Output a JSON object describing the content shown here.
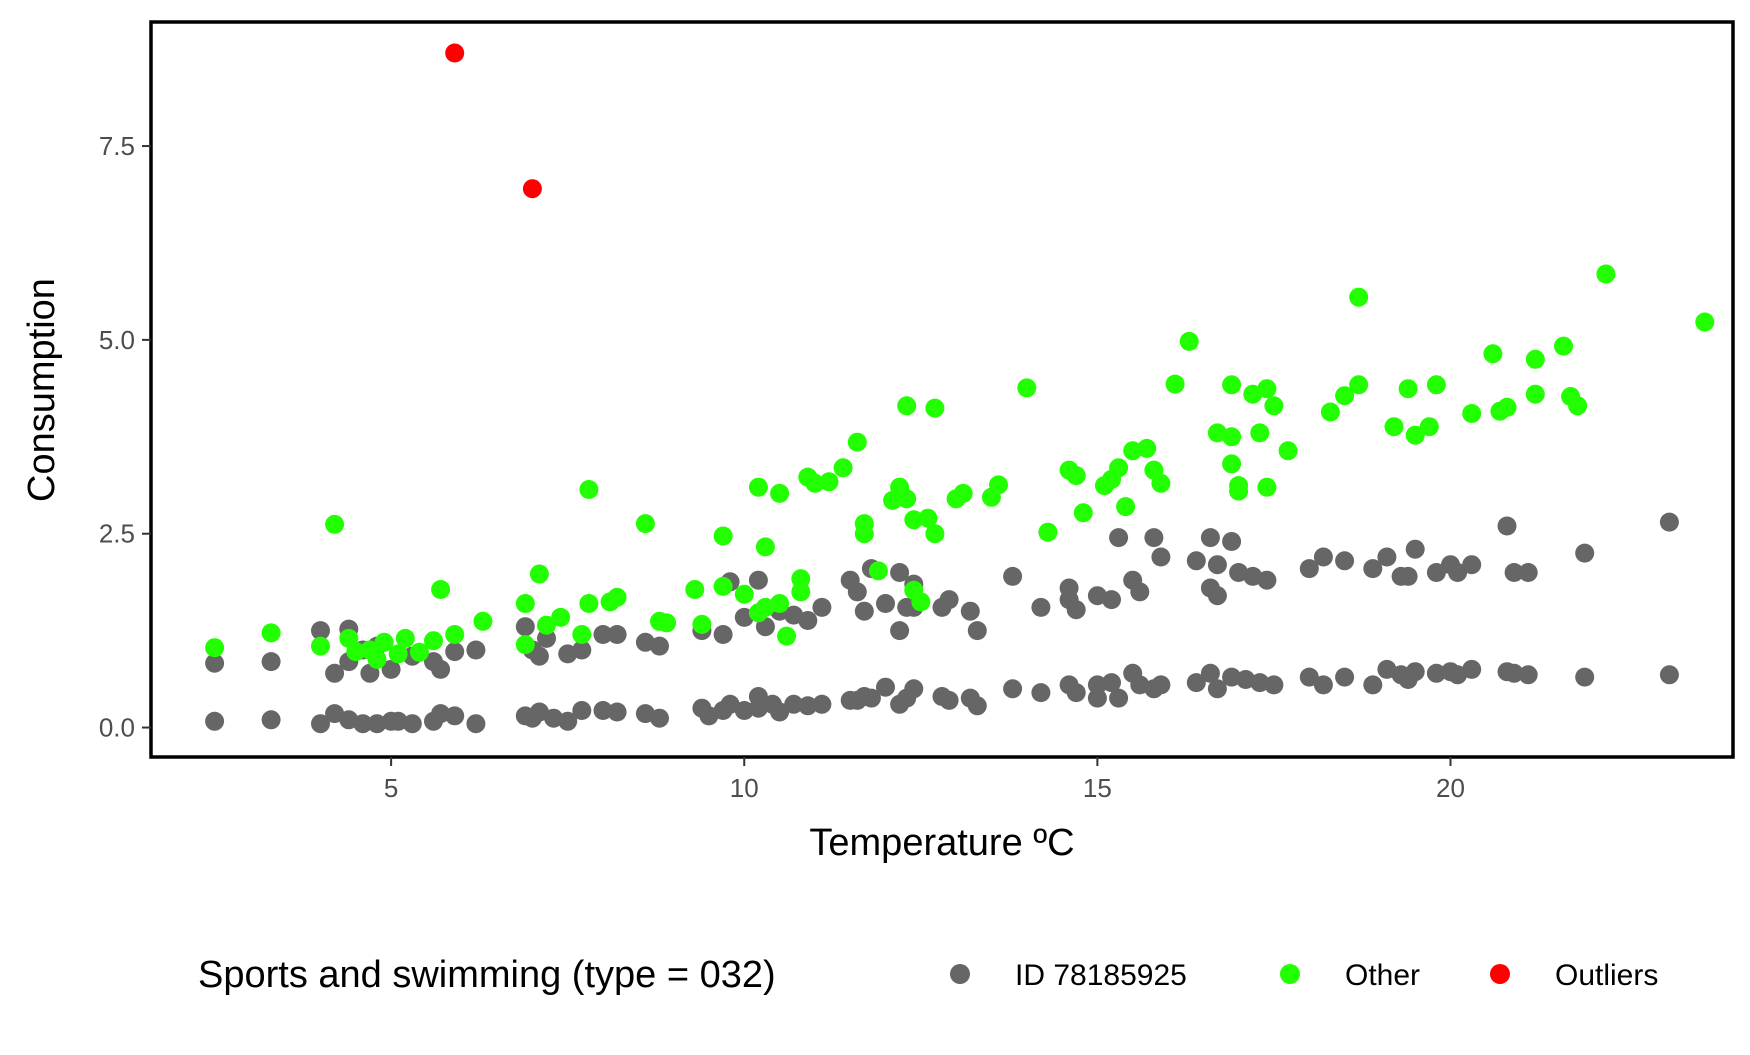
{
  "chart_data": {
    "type": "scatter",
    "xlabel": "Temperature ºC",
    "ylabel": "Consumption",
    "xlim": [
      1.6,
      24.0
    ],
    "ylim": [
      -0.38,
      9.1
    ],
    "xticks": [
      5,
      10,
      15,
      20
    ],
    "yticks": [
      0.0,
      2.5,
      5.0,
      7.5
    ],
    "x_tick_labels": [
      "5",
      "10",
      "15",
      "20"
    ],
    "y_tick_labels": [
      "0.0",
      "2.5",
      "5.0",
      "7.5"
    ],
    "grid": false,
    "legend": {
      "title": "Sports and swimming (type = 032)",
      "position": "bottom",
      "entries": [
        {
          "label": "ID 78185925",
          "color": "#666666"
        },
        {
          "label": "Other",
          "color": "#22ff00"
        },
        {
          "label": "Outliers",
          "color": "#ff0000"
        }
      ]
    },
    "series": [
      {
        "name": "ID 78185925",
        "color": "#666666",
        "points": [
          [
            2.5,
            0.83
          ],
          [
            2.5,
            0.08
          ],
          [
            3.3,
            0.85
          ],
          [
            3.3,
            0.1
          ],
          [
            4.0,
            1.25
          ],
          [
            4.0,
            0.05
          ],
          [
            4.2,
            0.7
          ],
          [
            4.2,
            0.18
          ],
          [
            4.4,
            1.27
          ],
          [
            4.4,
            0.1
          ],
          [
            4.4,
            0.85
          ],
          [
            4.6,
            1.0
          ],
          [
            4.6,
            0.05
          ],
          [
            4.7,
            0.7
          ],
          [
            4.8,
            1.05
          ],
          [
            4.8,
            0.05
          ],
          [
            5.0,
            0.75
          ],
          [
            5.0,
            0.08
          ],
          [
            5.1,
            0.08
          ],
          [
            5.3,
            0.92
          ],
          [
            5.3,
            0.05
          ],
          [
            5.6,
            0.85
          ],
          [
            5.6,
            0.08
          ],
          [
            5.7,
            0.75
          ],
          [
            5.7,
            0.18
          ],
          [
            5.9,
            0.98
          ],
          [
            5.9,
            0.15
          ],
          [
            6.2,
            1.0
          ],
          [
            6.2,
            0.05
          ],
          [
            6.9,
            1.3
          ],
          [
            6.9,
            0.15
          ],
          [
            7.0,
            1.0
          ],
          [
            7.0,
            0.12
          ],
          [
            7.1,
            0.92
          ],
          [
            7.1,
            0.2
          ],
          [
            7.2,
            1.15
          ],
          [
            7.3,
            0.12
          ],
          [
            7.5,
            0.95
          ],
          [
            7.5,
            0.08
          ],
          [
            7.7,
            1.0
          ],
          [
            7.7,
            0.22
          ],
          [
            8.0,
            1.2
          ],
          [
            8.0,
            0.22
          ],
          [
            8.2,
            1.2
          ],
          [
            8.2,
            0.2
          ],
          [
            8.6,
            1.1
          ],
          [
            8.6,
            0.18
          ],
          [
            8.8,
            1.05
          ],
          [
            8.8,
            0.12
          ],
          [
            9.4,
            1.25
          ],
          [
            9.4,
            0.25
          ],
          [
            9.5,
            0.15
          ],
          [
            9.7,
            1.2
          ],
          [
            9.7,
            0.22
          ],
          [
            9.8,
            1.88
          ],
          [
            9.8,
            0.3
          ],
          [
            10.0,
            1.42
          ],
          [
            10.0,
            0.22
          ],
          [
            10.2,
            1.9
          ],
          [
            10.2,
            0.25
          ],
          [
            10.2,
            0.4
          ],
          [
            10.3,
            1.3
          ],
          [
            10.4,
            0.3
          ],
          [
            10.5,
            1.5
          ],
          [
            10.5,
            0.2
          ],
          [
            10.7,
            1.45
          ],
          [
            10.7,
            0.3
          ],
          [
            10.9,
            1.38
          ],
          [
            10.9,
            0.28
          ],
          [
            11.1,
            1.55
          ],
          [
            11.1,
            0.3
          ],
          [
            11.5,
            1.9
          ],
          [
            11.5,
            0.35
          ],
          [
            11.6,
            1.75
          ],
          [
            11.6,
            0.35
          ],
          [
            11.7,
            1.5
          ],
          [
            11.7,
            0.4
          ],
          [
            11.8,
            2.05
          ],
          [
            11.8,
            0.38
          ],
          [
            12.0,
            1.6
          ],
          [
            12.0,
            0.52
          ],
          [
            12.2,
            2.0
          ],
          [
            12.2,
            0.3
          ],
          [
            12.2,
            1.25
          ],
          [
            12.3,
            1.55
          ],
          [
            12.3,
            0.38
          ],
          [
            12.4,
            1.85
          ],
          [
            12.4,
            0.5
          ],
          [
            12.4,
            1.55
          ],
          [
            12.8,
            1.55
          ],
          [
            12.8,
            0.4
          ],
          [
            12.9,
            1.65
          ],
          [
            12.9,
            0.35
          ],
          [
            13.2,
            1.5
          ],
          [
            13.2,
            0.38
          ],
          [
            13.3,
            1.25
          ],
          [
            13.3,
            0.28
          ],
          [
            13.8,
            1.95
          ],
          [
            13.8,
            0.5
          ],
          [
            14.2,
            1.55
          ],
          [
            14.2,
            0.45
          ],
          [
            14.6,
            1.8
          ],
          [
            14.6,
            0.55
          ],
          [
            14.6,
            1.65
          ],
          [
            14.7,
            0.45
          ],
          [
            14.7,
            1.52
          ],
          [
            15.0,
            1.7
          ],
          [
            15.0,
            0.55
          ],
          [
            15.0,
            0.38
          ],
          [
            15.2,
            1.65
          ],
          [
            15.2,
            0.58
          ],
          [
            15.3,
            2.45
          ],
          [
            15.3,
            0.38
          ],
          [
            15.5,
            1.9
          ],
          [
            15.5,
            0.7
          ],
          [
            15.6,
            1.75
          ],
          [
            15.6,
            0.55
          ],
          [
            15.8,
            2.45
          ],
          [
            15.8,
            0.5
          ],
          [
            15.9,
            2.2
          ],
          [
            15.9,
            0.55
          ],
          [
            16.4,
            2.15
          ],
          [
            16.4,
            0.58
          ],
          [
            16.6,
            2.45
          ],
          [
            16.6,
            0.7
          ],
          [
            16.6,
            1.8
          ],
          [
            16.7,
            1.7
          ],
          [
            16.7,
            0.5
          ],
          [
            16.7,
            2.1
          ],
          [
            16.9,
            2.4
          ],
          [
            16.9,
            0.65
          ],
          [
            17.0,
            2.0
          ],
          [
            17.1,
            0.62
          ],
          [
            17.2,
            1.95
          ],
          [
            17.3,
            0.58
          ],
          [
            17.4,
            1.9
          ],
          [
            17.5,
            0.55
          ],
          [
            18.0,
            2.05
          ],
          [
            18.0,
            0.65
          ],
          [
            18.2,
            2.2
          ],
          [
            18.2,
            0.55
          ],
          [
            18.5,
            2.15
          ],
          [
            18.5,
            0.65
          ],
          [
            18.9,
            2.05
          ],
          [
            18.9,
            0.55
          ],
          [
            19.1,
            2.2
          ],
          [
            19.1,
            0.75
          ],
          [
            19.3,
            1.95
          ],
          [
            19.3,
            0.68
          ],
          [
            19.4,
            1.95
          ],
          [
            19.4,
            0.62
          ],
          [
            19.5,
            2.3
          ],
          [
            19.5,
            0.72
          ],
          [
            19.8,
            2.0
          ],
          [
            19.8,
            0.7
          ],
          [
            20.0,
            2.1
          ],
          [
            20.0,
            0.72
          ],
          [
            20.1,
            2.0
          ],
          [
            20.1,
            0.68
          ],
          [
            20.3,
            2.1
          ],
          [
            20.3,
            0.75
          ],
          [
            20.8,
            2.6
          ],
          [
            20.8,
            0.72
          ],
          [
            20.9,
            2.0
          ],
          [
            20.9,
            0.7
          ],
          [
            21.1,
            2.0
          ],
          [
            21.1,
            0.68
          ],
          [
            21.9,
            2.25
          ],
          [
            21.9,
            0.65
          ],
          [
            23.1,
            2.65
          ],
          [
            23.1,
            0.68
          ]
        ]
      },
      {
        "name": "Other",
        "color": "#22ff00",
        "points": [
          [
            2.5,
            1.03
          ],
          [
            3.3,
            1.22
          ],
          [
            4.0,
            1.05
          ],
          [
            4.2,
            2.62
          ],
          [
            4.4,
            1.15
          ],
          [
            4.5,
            0.98
          ],
          [
            4.7,
            1.0
          ],
          [
            4.8,
            0.88
          ],
          [
            4.9,
            1.1
          ],
          [
            5.1,
            0.95
          ],
          [
            5.2,
            1.15
          ],
          [
            5.4,
            0.97
          ],
          [
            5.6,
            1.12
          ],
          [
            5.7,
            1.78
          ],
          [
            5.9,
            1.2
          ],
          [
            6.3,
            1.37
          ],
          [
            6.9,
            1.6
          ],
          [
            6.9,
            1.07
          ],
          [
            7.1,
            1.98
          ],
          [
            7.2,
            1.32
          ],
          [
            7.4,
            1.42
          ],
          [
            7.7,
            1.2
          ],
          [
            7.8,
            1.6
          ],
          [
            7.8,
            3.07
          ],
          [
            8.1,
            1.62
          ],
          [
            8.2,
            1.68
          ],
          [
            8.6,
            2.63
          ],
          [
            8.8,
            1.37
          ],
          [
            8.9,
            1.35
          ],
          [
            9.3,
            1.78
          ],
          [
            9.4,
            1.33
          ],
          [
            9.7,
            2.47
          ],
          [
            9.7,
            1.82
          ],
          [
            10.0,
            1.72
          ],
          [
            10.2,
            1.48
          ],
          [
            10.2,
            3.1
          ],
          [
            10.3,
            1.55
          ],
          [
            10.3,
            2.33
          ],
          [
            10.5,
            3.02
          ],
          [
            10.5,
            1.6
          ],
          [
            10.6,
            1.18
          ],
          [
            10.8,
            1.75
          ],
          [
            10.8,
            1.92
          ],
          [
            10.9,
            3.23
          ],
          [
            11.0,
            3.15
          ],
          [
            11.2,
            3.17
          ],
          [
            11.4,
            3.35
          ],
          [
            11.6,
            3.68
          ],
          [
            11.7,
            2.63
          ],
          [
            11.7,
            2.5
          ],
          [
            11.9,
            2.02
          ],
          [
            12.1,
            2.93
          ],
          [
            12.2,
            3.1
          ],
          [
            12.3,
            4.15
          ],
          [
            12.3,
            2.95
          ],
          [
            12.4,
            2.68
          ],
          [
            12.4,
            1.77
          ],
          [
            12.5,
            1.62
          ],
          [
            12.6,
            2.7
          ],
          [
            12.7,
            2.5
          ],
          [
            12.7,
            4.12
          ],
          [
            13.0,
            2.95
          ],
          [
            13.1,
            3.02
          ],
          [
            13.5,
            2.97
          ],
          [
            13.6,
            3.13
          ],
          [
            14.0,
            4.38
          ],
          [
            14.3,
            2.52
          ],
          [
            14.6,
            3.32
          ],
          [
            14.7,
            3.25
          ],
          [
            14.8,
            2.77
          ],
          [
            15.1,
            3.12
          ],
          [
            15.2,
            3.2
          ],
          [
            15.3,
            3.35
          ],
          [
            15.4,
            2.85
          ],
          [
            15.5,
            3.57
          ],
          [
            15.7,
            3.6
          ],
          [
            15.8,
            3.32
          ],
          [
            15.9,
            3.15
          ],
          [
            16.3,
            4.98
          ],
          [
            16.1,
            4.43
          ],
          [
            16.7,
            3.8
          ],
          [
            16.9,
            3.75
          ],
          [
            16.9,
            3.4
          ],
          [
            16.9,
            4.42
          ],
          [
            17.0,
            3.05
          ],
          [
            17.0,
            3.12
          ],
          [
            17.2,
            4.3
          ],
          [
            17.3,
            3.8
          ],
          [
            17.4,
            4.37
          ],
          [
            17.4,
            3.1
          ],
          [
            17.5,
            4.15
          ],
          [
            17.7,
            3.57
          ],
          [
            18.3,
            4.07
          ],
          [
            18.5,
            4.28
          ],
          [
            18.7,
            5.55
          ],
          [
            18.7,
            4.42
          ],
          [
            19.2,
            3.88
          ],
          [
            19.4,
            4.37
          ],
          [
            19.5,
            3.77
          ],
          [
            19.7,
            3.88
          ],
          [
            19.8,
            4.42
          ],
          [
            20.3,
            4.05
          ],
          [
            20.6,
            4.82
          ],
          [
            20.7,
            4.08
          ],
          [
            20.8,
            4.13
          ],
          [
            21.2,
            4.3
          ],
          [
            21.2,
            4.75
          ],
          [
            21.6,
            4.92
          ],
          [
            21.7,
            4.27
          ],
          [
            21.8,
            4.15
          ],
          [
            22.2,
            5.85
          ],
          [
            23.6,
            5.23
          ]
        ]
      },
      {
        "name": "Outliers",
        "color": "#ff0000",
        "points": [
          [
            5.9,
            8.7
          ],
          [
            7.0,
            6.95
          ]
        ]
      }
    ]
  }
}
